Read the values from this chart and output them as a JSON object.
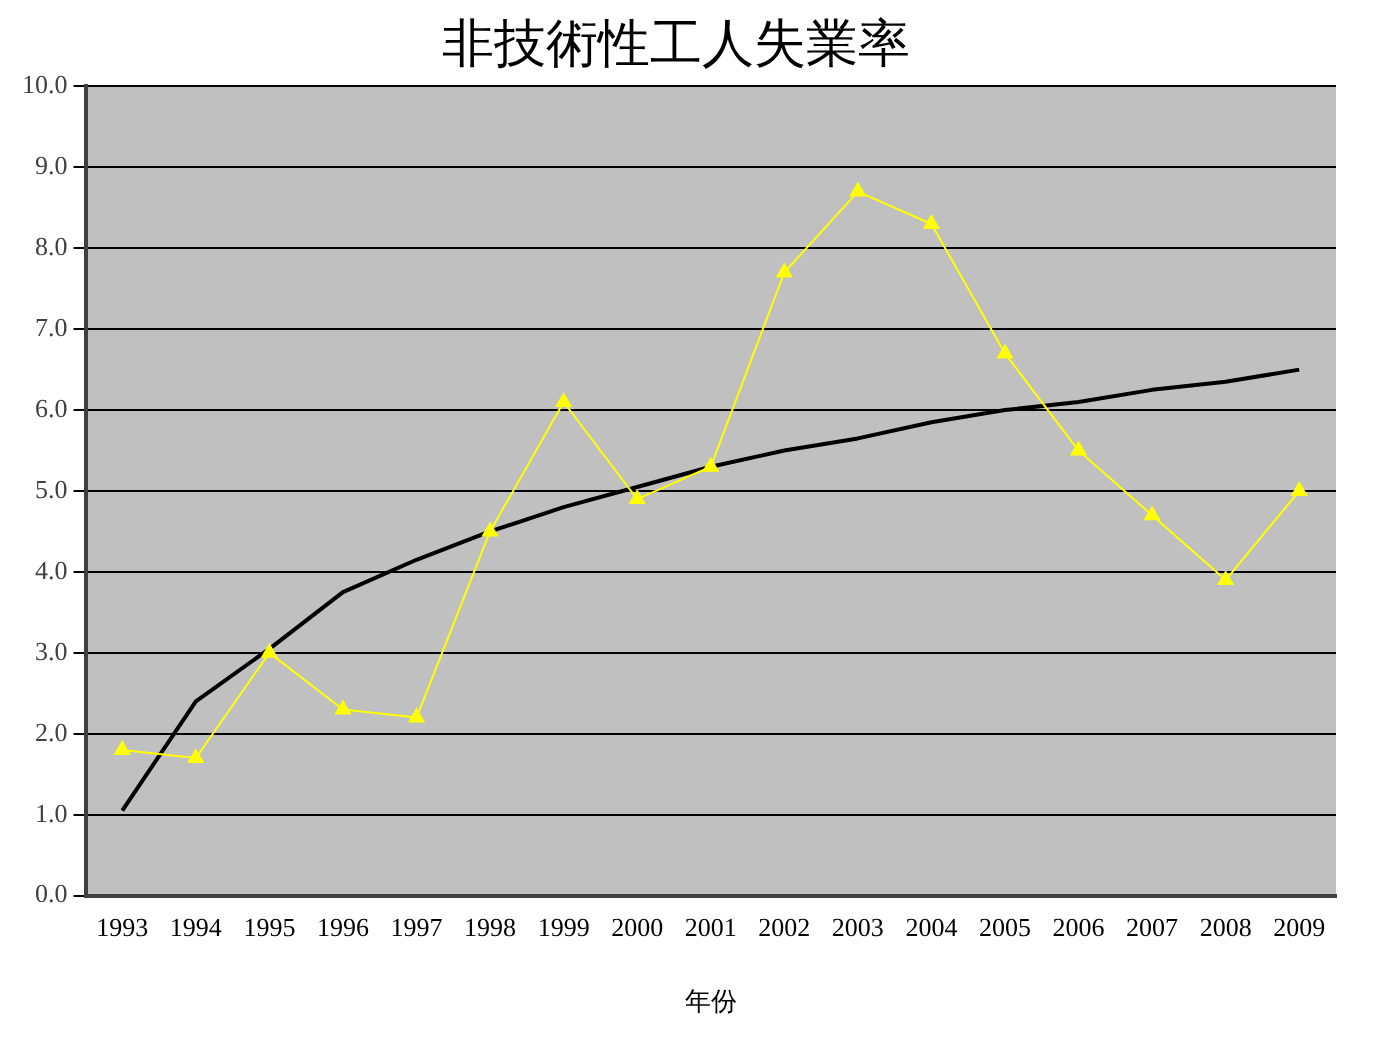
{
  "chart_data": {
    "type": "line",
    "title": "非技術性工人失業率",
    "xlabel": "年份",
    "categories": [
      "1993",
      "1994",
      "1995",
      "1996",
      "1997",
      "1998",
      "1999",
      "2000",
      "2001",
      "2002",
      "2003",
      "2004",
      "2005",
      "2006",
      "2007",
      "2008",
      "2009"
    ],
    "series": [
      {
        "color": "#ffff00",
        "marker": "triangle",
        "values": [
          1.8,
          1.7,
          3.0,
          2.3,
          2.2,
          4.5,
          6.1,
          4.9,
          5.3,
          7.7,
          8.7,
          8.3,
          6.7,
          5.5,
          4.7,
          3.9,
          5.0
        ]
      },
      {
        "color": "#000000",
        "marker": "none",
        "values": [
          1.05,
          2.4,
          3.05,
          3.75,
          4.15,
          4.5,
          4.8,
          5.05,
          5.3,
          5.5,
          5.65,
          5.85,
          6.0,
          6.1,
          6.25,
          6.35,
          6.5
        ]
      }
    ],
    "ylim": [
      0,
      10
    ],
    "yticks": [
      {
        "value": 0,
        "label": "0.0"
      },
      {
        "value": 1,
        "label": "1.0"
      },
      {
        "value": 2,
        "label": "2.0"
      },
      {
        "value": 3,
        "label": "3.0"
      },
      {
        "value": 4,
        "label": "4.0"
      },
      {
        "value": 5,
        "label": "5.0"
      },
      {
        "value": 6,
        "label": "6.0"
      },
      {
        "value": 7,
        "label": "7.0"
      },
      {
        "value": 8,
        "label": "8.0"
      },
      {
        "value": 9,
        "label": "9.0"
      },
      {
        "value": 10,
        "label": "10.0"
      }
    ],
    "grid": "y",
    "legend": false
  }
}
